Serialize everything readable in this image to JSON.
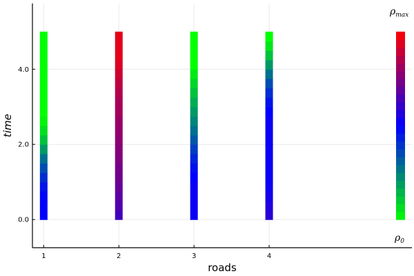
{
  "chart_data": {
    "type": "heatmap",
    "title": "",
    "xlabel": "roads",
    "ylabel": "time",
    "x_ticks": [
      "1",
      "2",
      "3",
      "4"
    ],
    "y_ticks": [
      "0.0",
      "2.0",
      "4.0"
    ],
    "xlim": [
      0.85,
      5.9
    ],
    "ylim": [
      -0.75,
      5.75
    ],
    "grid": true,
    "time_range": [
      0,
      5
    ],
    "colorbar": {
      "position": "right",
      "max_label": "ρ",
      "max_sub": "max",
      "min_label": "ρ",
      "min_sub": "0",
      "colors": [
        "#00ff00",
        "#0000ff",
        "#ff0000"
      ]
    },
    "roads": [
      {
        "road": 1,
        "density": [
          0.5,
          0.5,
          0.49,
          0.46,
          0.41,
          0.35,
          0.28,
          0.2,
          0.12,
          0.06,
          0.02,
          0.0,
          0.0,
          0.0,
          0.0,
          0.0,
          0.0,
          0.0,
          0.0,
          0.0
        ]
      },
      {
        "road": 2,
        "density": [
          0.63,
          0.66,
          0.68,
          0.7,
          0.72,
          0.73,
          0.75,
          0.76,
          0.78,
          0.79,
          0.8,
          0.82,
          0.83,
          0.85,
          0.87,
          0.9,
          0.93,
          0.95,
          0.95,
          0.95
        ]
      },
      {
        "road": 3,
        "density": [
          0.52,
          0.52,
          0.52,
          0.52,
          0.5,
          0.47,
          0.43,
          0.38,
          0.33,
          0.28,
          0.24,
          0.2,
          0.16,
          0.12,
          0.08,
          0.04,
          0.0,
          0.0,
          0.0,
          0.0
        ]
      },
      {
        "road": 4,
        "density": [
          0.58,
          0.56,
          0.54,
          0.53,
          0.52,
          0.52,
          0.52,
          0.52,
          0.52,
          0.52,
          0.52,
          0.5,
          0.46,
          0.41,
          0.35,
          0.28,
          0.2,
          0.12,
          0.05,
          0.0
        ]
      }
    ]
  }
}
